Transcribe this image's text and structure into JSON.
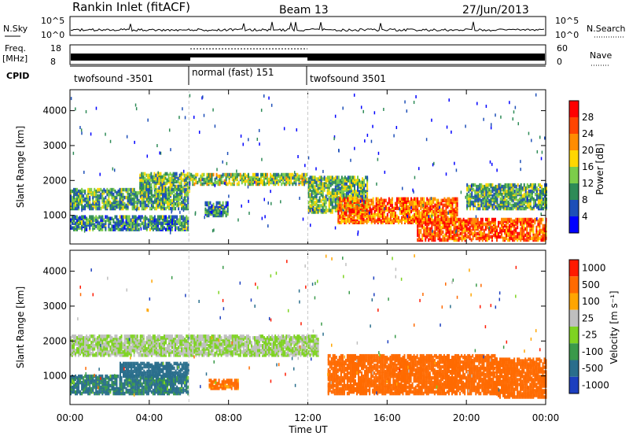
{
  "header": {
    "station": "Rankin Inlet (fitACF)",
    "beam": "Beam 13",
    "date": "27/Jun/2013"
  },
  "noise_panel": {
    "left_label": "N.Sky",
    "left_ticks": [
      "10^5",
      "10^0"
    ],
    "right_ticks": [
      "10^5",
      "10^0"
    ],
    "right_label": "N.Search"
  },
  "freq_panel": {
    "left_label_1": "Freq.",
    "left_label_2": "[MHz]",
    "left_ticks": [
      "18",
      "8"
    ],
    "right_ticks": [
      "60",
      "0"
    ],
    "right_label": "Nave"
  },
  "cpid_panel": {
    "label": "CPID",
    "segments": [
      {
        "label": "twofsound -3501",
        "start_hour": 0,
        "end_hour": 6
      },
      {
        "label": "normal (fast) 151",
        "start_hour": 6,
        "end_hour": 12
      },
      {
        "label": "twofsound 3501",
        "start_hour": 12,
        "end_hour": 24
      }
    ]
  },
  "x_axis": {
    "label": "Time UT",
    "ticks": [
      "00:00",
      "04:00",
      "08:00",
      "12:00",
      "16:00",
      "20:00",
      "00:00"
    ]
  },
  "power_panel": {
    "ylabel": "Slant Range [km]",
    "yticks": [
      "4000",
      "3000",
      "2000",
      "1000"
    ],
    "colorbar_label": "Power [dB]",
    "colorbar_ticks": [
      "28",
      "24",
      "20",
      "16",
      "12",
      "8",
      "4"
    ],
    "colors": [
      "#0000ff",
      "#1d4fb8",
      "#2e8b57",
      "#7ccd4a",
      "#ffd700",
      "#ff8c00",
      "#ff4500",
      "#ff0000"
    ]
  },
  "velocity_panel": {
    "ylabel": "Slant Range [km]",
    "yticks": [
      "4000",
      "3000",
      "2000",
      "1000"
    ],
    "colorbar_label": "Velocity [m s⁻¹]",
    "colorbar_ticks": [
      "1000",
      "500",
      "100",
      "25",
      "-25",
      "-100",
      "-500",
      "-1000"
    ],
    "colors": [
      "#1c3fbf",
      "#2a6e8c",
      "#3a9a4a",
      "#7ed321",
      "#bfbfbf",
      "#ffa500",
      "#ff6a00",
      "#ff1a00"
    ]
  },
  "chart_data": [
    {
      "type": "heatmap",
      "title": "Power",
      "xlabel": "Time UT",
      "ylabel": "Slant Range [km]",
      "xlim": [
        0,
        24
      ],
      "ylim": [
        180,
        4600
      ],
      "colorbar": {
        "label": "Power [dB]",
        "range": [
          0,
          32
        ],
        "ticks": [
          4,
          8,
          12,
          16,
          20,
          24,
          28
        ]
      },
      "regions": [
        {
          "t0": 0.0,
          "t1": 6.0,
          "r0": 1200,
          "r1": 1750,
          "level": 0.35
        },
        {
          "t0": 0.0,
          "t1": 6.0,
          "r0": 600,
          "r1": 1000,
          "level": 0.3
        },
        {
          "t0": 3.5,
          "t1": 6.0,
          "r0": 1700,
          "r1": 2200,
          "level": 0.4
        },
        {
          "t0": 6.0,
          "t1": 12.0,
          "r0": 1900,
          "r1": 2200,
          "level": 0.45
        },
        {
          "t0": 6.8,
          "t1": 8.0,
          "r0": 1000,
          "r1": 1400,
          "level": 0.3
        },
        {
          "t0": 12.0,
          "t1": 15.0,
          "r0": 1100,
          "r1": 2100,
          "level": 0.4
        },
        {
          "t0": 13.5,
          "t1": 19.5,
          "r0": 800,
          "r1": 1500,
          "level": 0.75
        },
        {
          "t0": 17.5,
          "t1": 24.0,
          "r0": 300,
          "r1": 900,
          "level": 0.8
        },
        {
          "t0": 20.0,
          "t1": 24.0,
          "r0": 1200,
          "r1": 1900,
          "level": 0.35
        }
      ]
    },
    {
      "type": "heatmap",
      "title": "Velocity",
      "xlabel": "Time UT",
      "ylabel": "Slant Range [km]",
      "xlim": [
        0,
        24
      ],
      "ylim": [
        180,
        4600
      ],
      "colorbar": {
        "label": "Velocity [m s⁻¹]",
        "ticks": [
          1000,
          500,
          100,
          25,
          -25,
          -100,
          -500,
          -1000
        ]
      },
      "regions": [
        {
          "t0": 0.0,
          "t1": 12.5,
          "r0": 1600,
          "r1": 2150,
          "velocity": 0
        },
        {
          "t0": 0.0,
          "t1": 6.0,
          "r0": 500,
          "r1": 1000,
          "velocity": 150
        },
        {
          "t0": 2.5,
          "t1": 6.0,
          "r0": 1000,
          "r1": 1400,
          "velocity": 300
        },
        {
          "t0": 7.0,
          "t1": 8.5,
          "r0": 650,
          "r1": 900,
          "velocity": -200
        },
        {
          "t0": 13.0,
          "t1": 21.5,
          "r0": 500,
          "r1": 1600,
          "velocity": -300
        },
        {
          "t0": 21.5,
          "t1": 24.0,
          "r0": 400,
          "r1": 1500,
          "velocity": -300
        }
      ]
    }
  ]
}
